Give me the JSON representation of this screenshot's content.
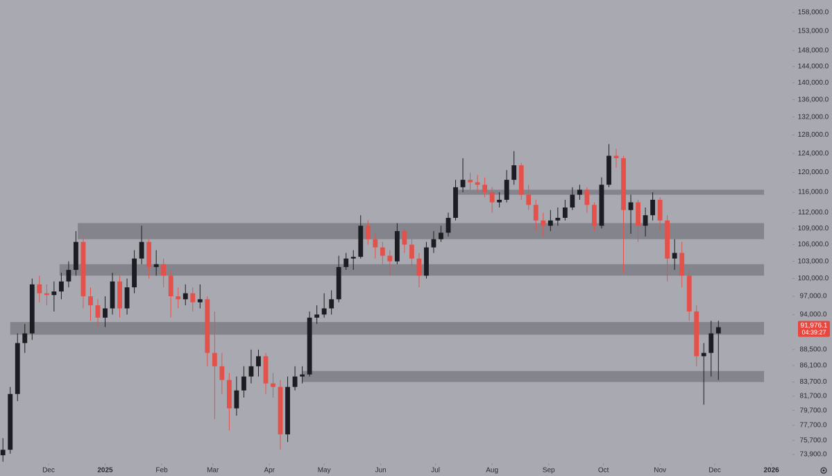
{
  "chart_data": {
    "type": "candlestick",
    "log_scale": true,
    "grid": false,
    "up_color": "#1c1d22",
    "down_color": "#e4504a",
    "zone_color": "#7e7f86",
    "x": [
      -25,
      -21,
      -17,
      -13,
      -9,
      -5,
      -1,
      3,
      7,
      11,
      15,
      19,
      23,
      27,
      31,
      35,
      39,
      43,
      47,
      51,
      55,
      59,
      63,
      67,
      71,
      75,
      79,
      83,
      87,
      91,
      95,
      99,
      103,
      107,
      111,
      115,
      119,
      123,
      127,
      131,
      135,
      139,
      143,
      147,
      151,
      155,
      159,
      163,
      167,
      171,
      175,
      179,
      183,
      187,
      191,
      195,
      199,
      203,
      207,
      211,
      215,
      219,
      223,
      227,
      231,
      235,
      239,
      243,
      247,
      251,
      255,
      259,
      263,
      267,
      271,
      275,
      279,
      283,
      287,
      291,
      295,
      299,
      303,
      307,
      311,
      315,
      319,
      323,
      327,
      331,
      335,
      339,
      343,
      347,
      351,
      355,
      359,
      363,
      367
    ],
    "open": [
      73800,
      74500,
      82000,
      89500,
      91000,
      99000,
      97500,
      97200,
      97800,
      99500,
      101500,
      106500,
      97000,
      95500,
      93500,
      95000,
      99500,
      95000,
      98500,
      103500,
      106500,
      102000,
      102500,
      100500,
      97000,
      96500,
      97500,
      96000,
      96500,
      88000,
      86000,
      84000,
      80000,
      82500,
      84500,
      86000,
      87500,
      83500,
      83000,
      76500,
      83000,
      84500,
      84800,
      93500,
      94000,
      95000,
      96500,
      102000,
      103500,
      103800,
      109500,
      107000,
      105500,
      104000,
      103000,
      108500,
      106000,
      103500,
      100500,
      105500,
      107000,
      108200,
      111000,
      117000,
      118500,
      118000,
      117500,
      116000,
      114000,
      114500,
      118500,
      121500,
      115500,
      113500,
      110500,
      109500,
      110500,
      111000,
      113000,
      115500,
      116500,
      113500,
      109500,
      117500,
      123500,
      123000,
      112500,
      114000,
      109500,
      111500,
      114500,
      110500,
      103500,
      104500,
      100500,
      94500,
      87500,
      88000,
      91000
    ],
    "high": [
      76000,
      83000,
      91000,
      92500,
      100000,
      100500,
      99000,
      99500,
      101000,
      103000,
      108500,
      107500,
      98500,
      96500,
      97000,
      101000,
      100500,
      100000,
      105000,
      109500,
      107000,
      105000,
      103500,
      101500,
      98500,
      99000,
      98500,
      99000,
      97000,
      94500,
      88000,
      85000,
      84500,
      86000,
      88500,
      88500,
      88000,
      85000,
      84000,
      84500,
      86000,
      86000,
      94500,
      95500,
      97500,
      98000,
      104000,
      104500,
      105000,
      111500,
      110500,
      108000,
      106500,
      105000,
      110000,
      109000,
      107000,
      104500,
      106500,
      108500,
      109500,
      112000,
      118500,
      123000,
      120000,
      119500,
      119000,
      117000,
      116000,
      120500,
      124500,
      122000,
      117500,
      114500,
      112000,
      112500,
      113000,
      114500,
      117000,
      117500,
      117000,
      114000,
      119000,
      126000,
      125000,
      123500,
      115500,
      114500,
      113000,
      116000,
      115000,
      111500,
      107000,
      106500,
      101500,
      95500,
      89500,
      93000,
      93000
    ],
    "low": [
      73000,
      74000,
      81000,
      88000,
      90000,
      96000,
      95500,
      94500,
      96500,
      98500,
      100500,
      95000,
      93000,
      92000,
      92000,
      94000,
      93500,
      94000,
      97500,
      102500,
      100000,
      100500,
      98500,
      93500,
      95000,
      95500,
      94500,
      95000,
      86000,
      78500,
      82000,
      77000,
      79000,
      81500,
      83500,
      84500,
      82000,
      81500,
      74500,
      75500,
      82500,
      83500,
      84500,
      92500,
      93500,
      94000,
      96000,
      101500,
      101500,
      103500,
      106000,
      103500,
      102500,
      100500,
      102500,
      104500,
      102000,
      98500,
      100000,
      104500,
      106500,
      107500,
      110500,
      116000,
      116500,
      116000,
      115000,
      112000,
      113000,
      114000,
      117500,
      114500,
      112500,
      108500,
      107500,
      108500,
      109500,
      110500,
      112500,
      114500,
      112000,
      108500,
      109000,
      117000,
      121000,
      101000,
      108000,
      106500,
      107500,
      110500,
      108500,
      99500,
      101500,
      98500,
      93000,
      86000,
      80500,
      84500,
      84000
    ],
    "close": [
      74500,
      82000,
      89500,
      91000,
      99000,
      97500,
      97200,
      97800,
      99500,
      101500,
      106500,
      97000,
      95500,
      93500,
      95000,
      99500,
      95000,
      98500,
      103500,
      106500,
      102000,
      102500,
      100500,
      97000,
      96500,
      97500,
      96000,
      96500,
      88000,
      86000,
      84000,
      80000,
      82500,
      84500,
      86000,
      87500,
      83500,
      83000,
      76500,
      83000,
      84500,
      84800,
      93500,
      94000,
      95000,
      96500,
      102000,
      103500,
      103800,
      109500,
      107000,
      105500,
      104000,
      103000,
      108500,
      106000,
      103500,
      100500,
      105500,
      107000,
      108200,
      111000,
      117000,
      118500,
      118000,
      117500,
      116000,
      114000,
      114500,
      118500,
      121500,
      115500,
      113500,
      110500,
      109500,
      110500,
      111000,
      113000,
      115500,
      116500,
      113500,
      109500,
      117500,
      123500,
      123000,
      112500,
      114000,
      109500,
      111500,
      114500,
      110500,
      103500,
      104500,
      100500,
      94500,
      87500,
      88000,
      91000,
      91976.1
    ],
    "zones": [
      {
        "low": 107000,
        "high": 110000,
        "start": 16,
        "end": 392
      },
      {
        "low": 100500,
        "high": 102500,
        "start": 6,
        "end": 392
      },
      {
        "low": 115500,
        "high": 116500,
        "start": 222,
        "end": 392
      },
      {
        "low": 90800,
        "high": 92800,
        "start": -21,
        "end": 392
      },
      {
        "low": 83700,
        "high": 85300,
        "start": 139,
        "end": 392
      }
    ],
    "xlim": [
      -26.6,
      406.8
    ],
    "xticks": [
      {
        "value": 0,
        "label": "Dec"
      },
      {
        "value": 31,
        "label": "2025"
      },
      {
        "value": 62,
        "label": "Feb"
      },
      {
        "value": 90,
        "label": "Mar"
      },
      {
        "value": 121,
        "label": "Apr"
      },
      {
        "value": 151,
        "label": "May"
      },
      {
        "value": 182,
        "label": "Jun"
      },
      {
        "value": 212,
        "label": "Jul"
      },
      {
        "value": 243,
        "label": "Aug"
      },
      {
        "value": 274,
        "label": "Sep"
      },
      {
        "value": 304,
        "label": "Oct"
      },
      {
        "value": 335,
        "label": "Nov"
      },
      {
        "value": 365,
        "label": "Dec"
      },
      {
        "value": 396,
        "label": "2026"
      }
    ],
    "ylim": [
      72760,
      161430
    ],
    "yticks": [
      {
        "value": 158000,
        "label": "158,000.0"
      },
      {
        "value": 153000,
        "label": "153,000.0"
      },
      {
        "value": 148000,
        "label": "148,000.0"
      },
      {
        "value": 144000,
        "label": "144,000.0"
      },
      {
        "value": 140000,
        "label": "140,000.0"
      },
      {
        "value": 136000,
        "label": "136,000.0"
      },
      {
        "value": 132000,
        "label": "132,000.0"
      },
      {
        "value": 128000,
        "label": "128,000.0"
      },
      {
        "value": 124000,
        "label": "124,000.0"
      },
      {
        "value": 120000,
        "label": "120,000.0"
      },
      {
        "value": 116000,
        "label": "116,000.0"
      },
      {
        "value": 112000,
        "label": "112,000.0"
      },
      {
        "value": 109000,
        "label": "109,000.0"
      },
      {
        "value": 106000,
        "label": "106,000.0"
      },
      {
        "value": 103000,
        "label": "103,000.0"
      },
      {
        "value": 100000,
        "label": "100,000.0"
      },
      {
        "value": 97000,
        "label": "97,000.0"
      },
      {
        "value": 94000,
        "label": "94,000.0"
      },
      {
        "value": 88500,
        "label": "88,500.0"
      },
      {
        "value": 86100,
        "label": "86,100.0"
      },
      {
        "value": 83700,
        "label": "83,700.0"
      },
      {
        "value": 81700,
        "label": "81,700.0"
      },
      {
        "value": 79700,
        "label": "79,700.0"
      },
      {
        "value": 77700,
        "label": "77,700.0"
      },
      {
        "value": 75700,
        "label": "75,700.0"
      },
      {
        "value": 73900,
        "label": "73,900.0"
      }
    ],
    "last_price": {
      "value": 91976.1,
      "label": "91,976.1"
    },
    "countdown": "04:39:27",
    "last_price_color": "#e8473f"
  }
}
